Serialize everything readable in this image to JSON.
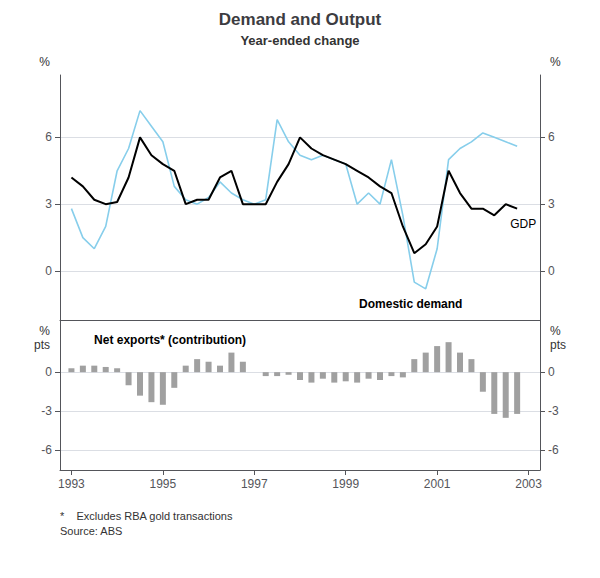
{
  "chart_data": [
    {
      "type": "line",
      "title": "Demand and Output",
      "subtitle": "Year-ended change",
      "x": [
        1993.0,
        1993.25,
        1993.5,
        1993.75,
        1994.0,
        1994.25,
        1994.5,
        1994.75,
        1995.0,
        1995.25,
        1995.5,
        1995.75,
        1996.0,
        1996.25,
        1996.5,
        1996.75,
        1997.0,
        1997.25,
        1997.5,
        1997.75,
        1998.0,
        1998.25,
        1998.5,
        1998.75,
        1999.0,
        1999.25,
        1999.5,
        1999.75,
        2000.0,
        2000.25,
        2000.5,
        2000.75,
        2001.0,
        2001.25,
        2001.5,
        2001.75,
        2002.0,
        2002.25,
        2002.5,
        2002.75
      ],
      "series": [
        {
          "name": "Domestic demand",
          "color": "#87CEEB",
          "values": [
            2.8,
            1.5,
            1.0,
            2.0,
            4.5,
            5.5,
            7.2,
            6.5,
            5.8,
            3.8,
            3.2,
            3.0,
            3.3,
            4.0,
            3.5,
            3.2,
            3.0,
            3.2,
            6.8,
            5.8,
            5.2,
            5.0,
            5.2,
            5.0,
            4.8,
            3.0,
            3.5,
            3.0,
            5.0,
            2.5,
            -0.5,
            -0.8,
            1.0,
            5.0,
            5.5,
            5.8,
            6.2,
            6.0,
            5.8,
            5.6
          ]
        },
        {
          "name": "GDP",
          "color": "black",
          "values": [
            4.2,
            3.8,
            3.2,
            3.0,
            3.1,
            4.2,
            6.0,
            5.2,
            4.8,
            4.5,
            3.0,
            3.2,
            3.2,
            4.2,
            4.5,
            3.0,
            3.0,
            3.0,
            4.0,
            4.8,
            6.0,
            5.5,
            5.2,
            5.0,
            4.8,
            4.5,
            4.2,
            3.8,
            3.5,
            2.0,
            0.8,
            1.2,
            2.0,
            4.5,
            3.5,
            2.8,
            2.8,
            2.5,
            3.0,
            2.8
          ]
        }
      ],
      "xlim": [
        1992.75,
        2003.25
      ],
      "ylim": [
        -2.2,
        8.8
      ],
      "yticks": [
        0,
        3,
        6
      ],
      "y2lim": [
        -2.2,
        8.8
      ],
      "y2ticks": [
        0,
        3,
        6
      ],
      "ylabel": "%",
      "y2label": "%",
      "grid": true,
      "tick_labels": "y"
    },
    {
      "type": "bar",
      "x": [
        1993.0,
        1993.25,
        1993.5,
        1993.75,
        1994.0,
        1994.25,
        1994.5,
        1994.75,
        1995.0,
        1995.25,
        1995.5,
        1995.75,
        1996.0,
        1996.25,
        1996.5,
        1996.75,
        1997.0,
        1997.25,
        1997.5,
        1997.75,
        1998.0,
        1998.25,
        1998.5,
        1998.75,
        1999.0,
        1999.25,
        1999.5,
        1999.75,
        2000.0,
        2000.25,
        2000.5,
        2000.75,
        2001.0,
        2001.25,
        2001.5,
        2001.75,
        2002.0,
        2002.25,
        2002.5,
        2002.75
      ],
      "series": [
        {
          "name": "Net exports* (contribution)",
          "color": "#a0a0a0",
          "values": [
            0.3,
            0.5,
            0.5,
            0.4,
            0.3,
            -1.0,
            -1.8,
            -2.3,
            -2.5,
            -1.2,
            0.5,
            1.0,
            0.8,
            0.5,
            1.5,
            0.8,
            0.0,
            -0.3,
            -0.3,
            -0.2,
            -0.6,
            -0.8,
            -0.5,
            -0.8,
            -0.7,
            -0.8,
            -0.5,
            -0.6,
            -0.3,
            -0.4,
            1.0,
            1.5,
            2.0,
            2.3,
            1.5,
            1.0,
            -1.5,
            -3.2,
            -3.5,
            -3.2
          ]
        }
      ],
      "xlim": [
        1992.75,
        2003.25
      ],
      "xticks": [
        1993,
        1995,
        1997,
        1999,
        2001,
        2003
      ],
      "ylim": [
        -7.5,
        4.0
      ],
      "yticks": [
        -6,
        -3,
        0
      ],
      "y2lim": [
        -7.5,
        4.0
      ],
      "y2ticks": [
        -6,
        -3,
        0
      ],
      "ylabel": "%\npts",
      "y2label": "%\npts",
      "grid": true,
      "footnote": "*    Excludes RBA gold transactions\nSource: ABS"
    }
  ]
}
